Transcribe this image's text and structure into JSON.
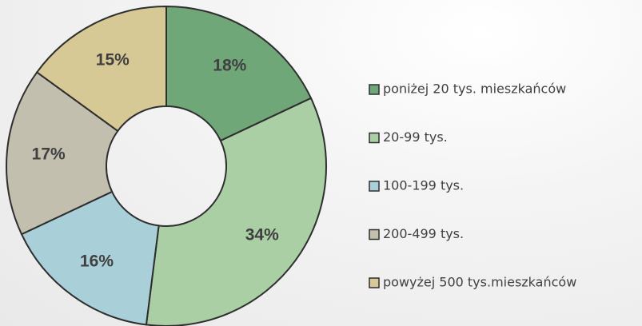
{
  "chart_data": {
    "type": "donut",
    "categories": [
      "poniżej 20 tys. mieszkańców",
      "20-99 tys.",
      "100-199 tys.",
      "200-499 tys.",
      "powyżej 500 tys.mieszkańców"
    ],
    "values": [
      18,
      34,
      16,
      17,
      15
    ],
    "value_labels": [
      "18%",
      "34%",
      "16%",
      "17%",
      "15%"
    ],
    "colors": [
      "#70a778",
      "#aacfa5",
      "#a9cfd9",
      "#c2bfae",
      "#d6c995"
    ],
    "legend": "right"
  }
}
